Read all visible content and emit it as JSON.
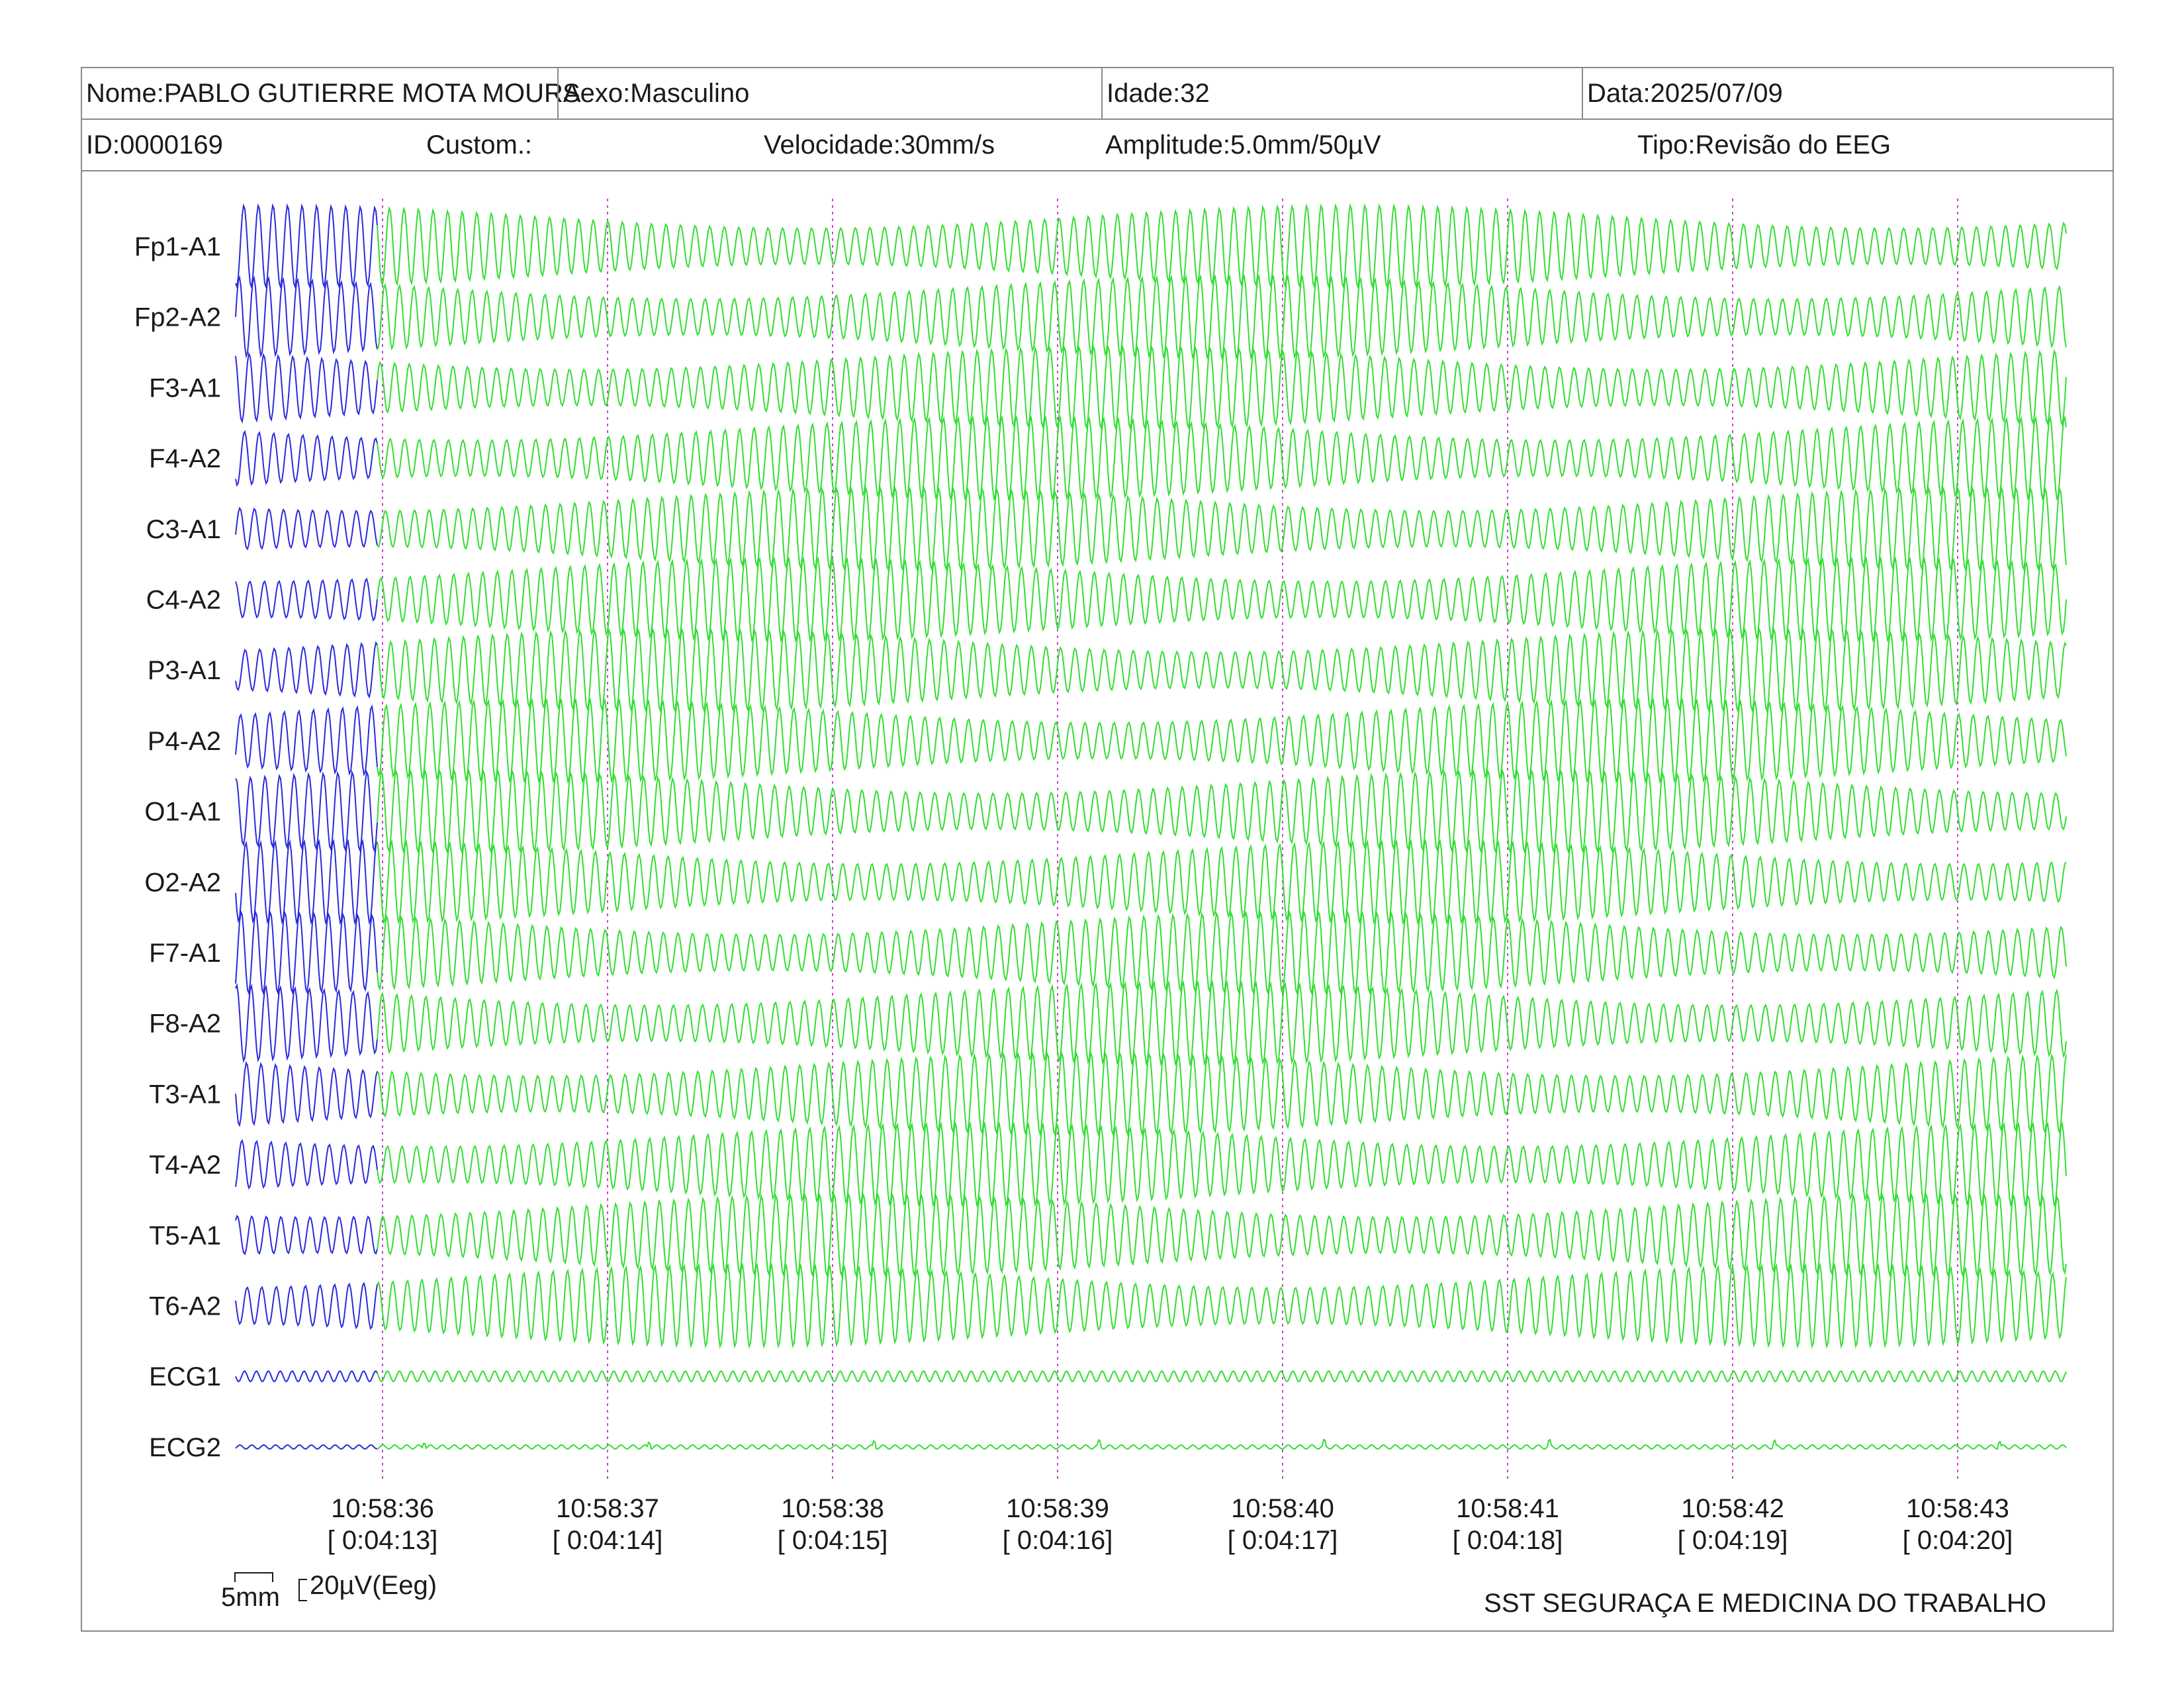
{
  "header": {
    "nome": "Nome:PABLO GUTIERRE MOTA MOURA",
    "sexo": "Sexo:Masculino",
    "idade": "Idade:32",
    "data": "Data:2025/07/09",
    "id": "ID:0000169",
    "custom": "Custom.:",
    "velocidade": "Velocidade:30mm/s",
    "amplitude": "Amplitude:5.0mm/50µV",
    "tipo": "Tipo:Revisão do EEG"
  },
  "channels": [
    "Fp1-A1",
    "Fp2-A2",
    "F3-A1",
    "F4-A2",
    "C3-A1",
    "C4-A2",
    "P3-A1",
    "P4-A2",
    "O1-A1",
    "O2-A2",
    "F7-A1",
    "F8-A2",
    "T3-A1",
    "T4-A2",
    "T5-A1",
    "T6-A2",
    "ECG1",
    "ECG2"
  ],
  "time_marks": [
    {
      "clock": "10:58:36",
      "elapsed": "[ 0:04:13]"
    },
    {
      "clock": "10:58:37",
      "elapsed": "[ 0:04:14]"
    },
    {
      "clock": "10:58:38",
      "elapsed": "[ 0:04:15]"
    },
    {
      "clock": "10:58:39",
      "elapsed": "[ 0:04:16]"
    },
    {
      "clock": "10:58:40",
      "elapsed": "[ 0:04:17]"
    },
    {
      "clock": "10:58:41",
      "elapsed": "[ 0:04:18]"
    },
    {
      "clock": "10:58:42",
      "elapsed": "[ 0:04:19]"
    },
    {
      "clock": "10:58:43",
      "elapsed": "[ 0:04:20]"
    }
  ],
  "scale": {
    "time_label": "5mm",
    "amp_label": "20µV(Eeg)"
  },
  "footer": "SST SEGURAÇA E MEDICINA DO TRABALHO",
  "colors": {
    "previous_segment": "#2a2adc",
    "current_segment": "#33dd33",
    "time_marker": "#cc44cc",
    "border": "#8a8a8a"
  }
}
